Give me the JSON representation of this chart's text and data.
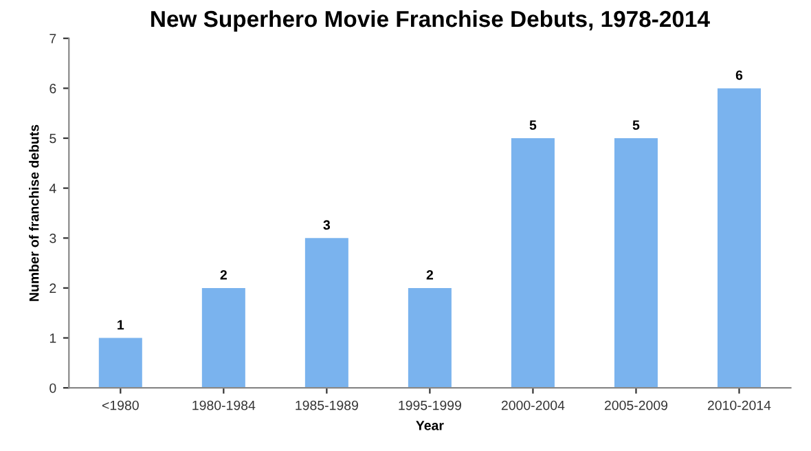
{
  "chart_data": {
    "type": "bar",
    "title": "New Superhero Movie Franchise Debuts, 1978-2014",
    "xlabel": "Year",
    "ylabel": "Number of franchise debuts",
    "categories": [
      "<1980",
      "1980-1984",
      "1985-1989",
      "1995-1999",
      "2000-2004",
      "2005-2009",
      "2010-2014"
    ],
    "values": [
      1,
      2,
      3,
      2,
      5,
      5,
      6
    ],
    "color": "#7ab3ee",
    "ylim": [
      0,
      7
    ],
    "yticks": [
      0,
      1,
      2,
      3,
      4,
      5,
      6,
      7
    ],
    "grid": false,
    "data_labels": true
  }
}
